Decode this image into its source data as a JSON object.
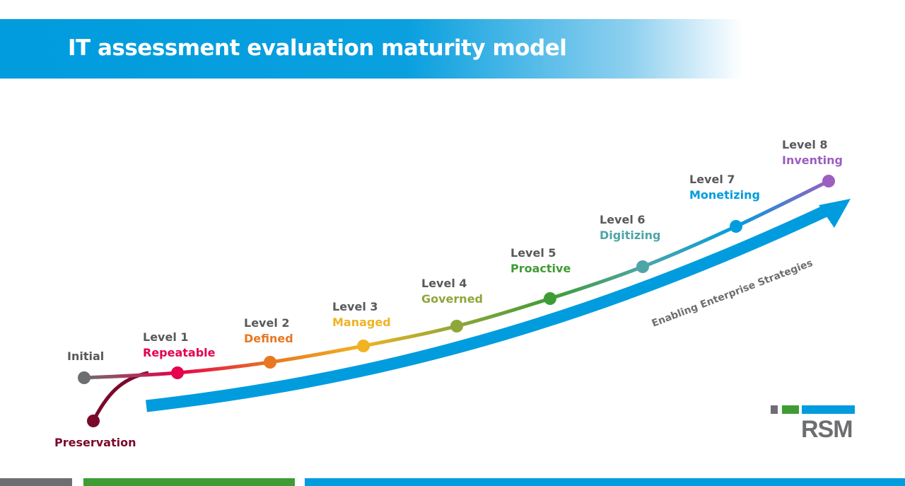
{
  "title": "IT assessment evaluation maturity model",
  "arrow_label": "Enabling Enterprise Strategies",
  "levels": [
    {
      "level": "",
      "name": "Initial",
      "color": "#6d6e71"
    },
    {
      "level": "Level 1",
      "name": "Repeatable",
      "color": "#e4004f"
    },
    {
      "level": "Level 2",
      "name": "Defined",
      "color": "#e87722"
    },
    {
      "level": "Level 3",
      "name": "Managed",
      "color": "#f0b323"
    },
    {
      "level": "Level 4",
      "name": "Governed",
      "color": "#8fa63a"
    },
    {
      "level": "Level 5",
      "name": "Proactive",
      "color": "#3f9c35"
    },
    {
      "level": "Level 6",
      "name": "Digitizing",
      "color": "#4ea5a8"
    },
    {
      "level": "Level 7",
      "name": "Monetizing",
      "color": "#009cde"
    },
    {
      "level": "Level 8",
      "name": "Inventing",
      "color": "#9b5fc0"
    }
  ],
  "preservation": {
    "name": "Preservation",
    "color": "#7a0a2a"
  },
  "logo": "RSM",
  "colors": {
    "gray": "#6d6e71",
    "green": "#3f9c35",
    "blue": "#009cde"
  }
}
